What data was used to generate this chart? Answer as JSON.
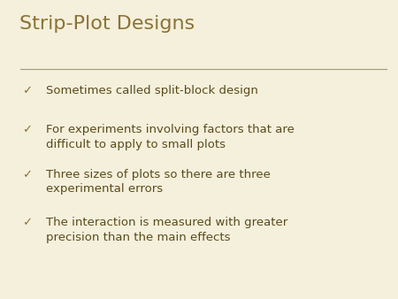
{
  "title": "Strip-Plot Designs",
  "title_color": "#8B7335",
  "title_fontsize": 16,
  "background_color": "#F5F0DC",
  "line_color": "#A09878",
  "bullet_color": "#8B7335",
  "text_color": "#5A4A1A",
  "bullet_char": "✓",
  "bullet_fontsize": 9.5,
  "title_fontweight": "normal",
  "bullets": [
    "Sometimes called split-block design",
    "For experiments involving factors that are\ndifficult to apply to small plots",
    "Three sizes of plots so there are three\nexperimental errors",
    "The interaction is measured with greater\nprecision than the main effects"
  ]
}
